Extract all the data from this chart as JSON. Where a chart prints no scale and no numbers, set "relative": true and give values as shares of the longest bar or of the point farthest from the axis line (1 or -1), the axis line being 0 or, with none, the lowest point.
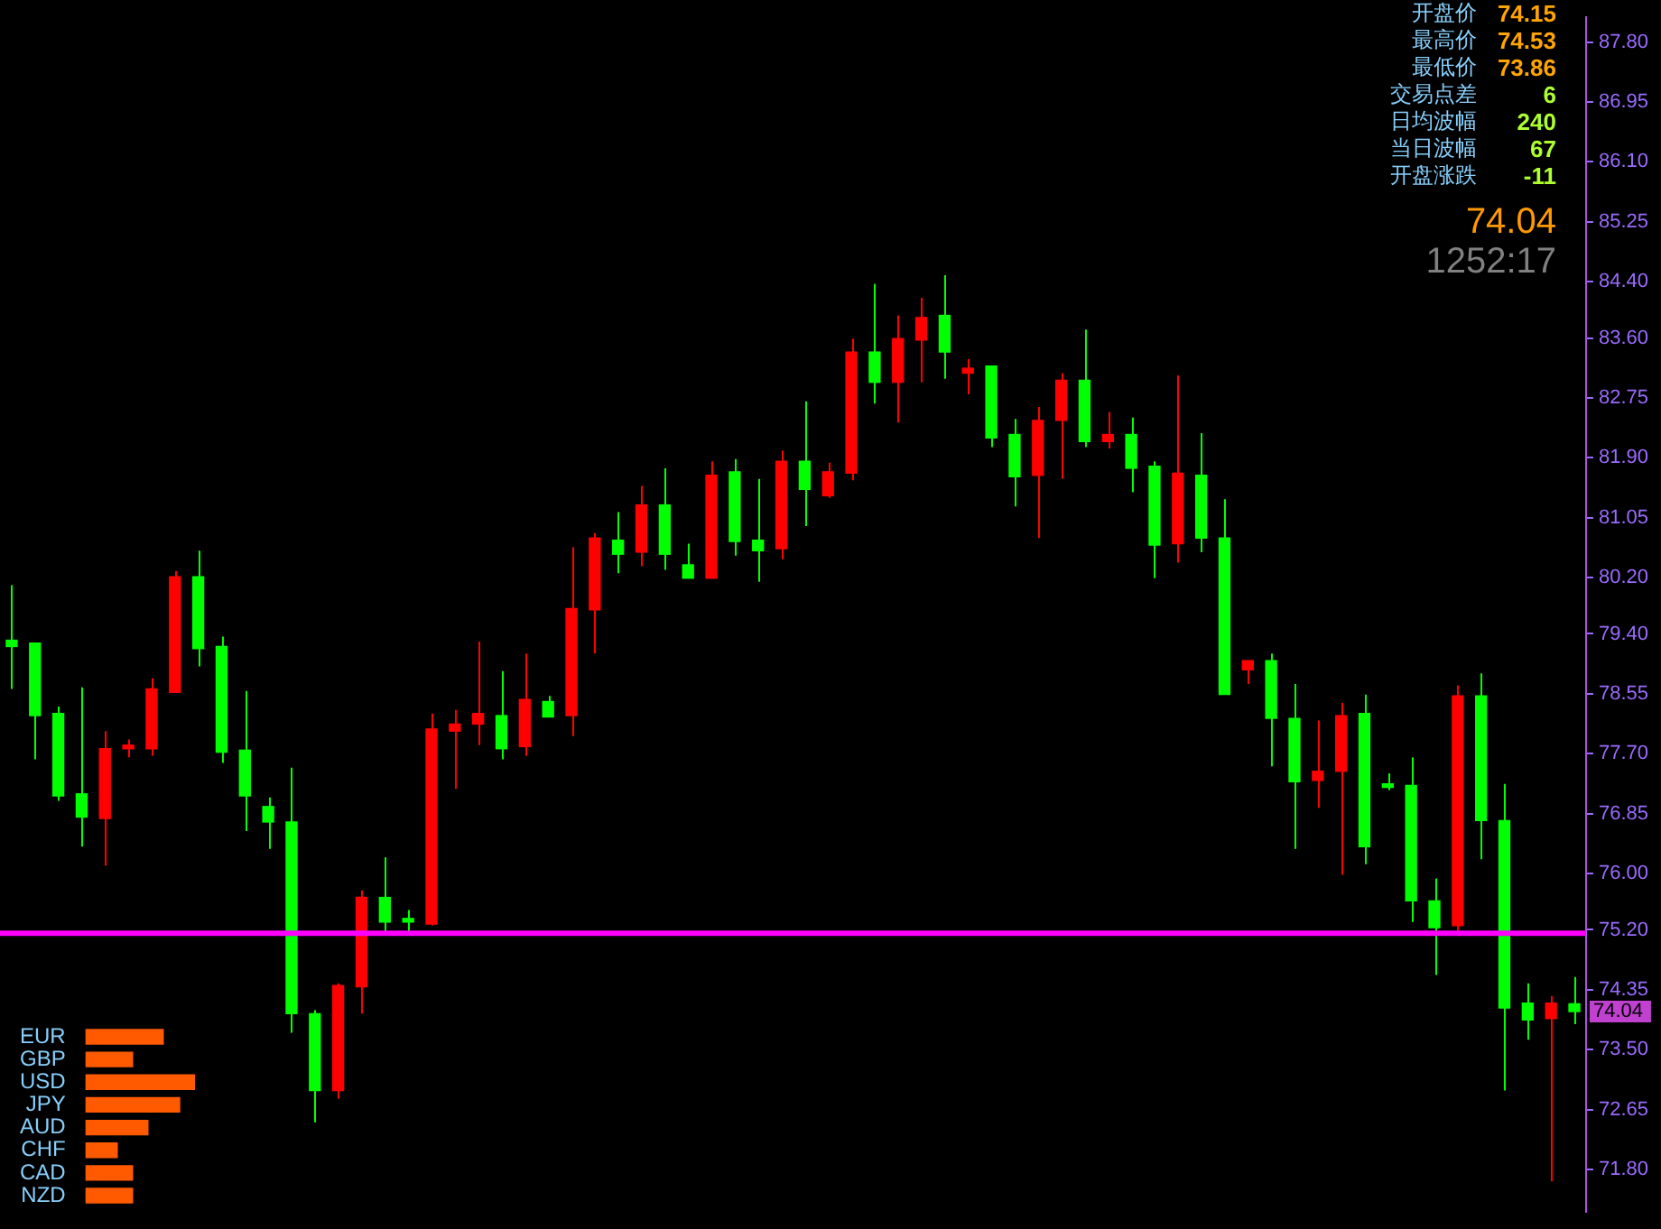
{
  "chart_data": [
    {
      "type": "candlestick",
      "tick_labels": "y",
      "categories": [
        null,
        null,
        null,
        null,
        null,
        null,
        null,
        null,
        null,
        null,
        null,
        null,
        null,
        null,
        null,
        null,
        null,
        null,
        null,
        null,
        null,
        null,
        null,
        null,
        null,
        null,
        null,
        null,
        null,
        null,
        null,
        null,
        null,
        null,
        null,
        null,
        null,
        null,
        null,
        null,
        null,
        null,
        null,
        null,
        null,
        null,
        null,
        null,
        null,
        null,
        null,
        null,
        null,
        null,
        null,
        null,
        null,
        null,
        null,
        null,
        null,
        null,
        null,
        null,
        null,
        null,
        null,
        null
      ],
      "ohlc": [
        [
          79.31,
          80.09,
          78.62,
          79.22
        ],
        [
          79.27,
          79.27,
          77.62,
          78.24
        ],
        [
          78.27,
          78.37,
          77.03,
          77.1
        ],
        [
          77.13,
          78.64,
          76.38,
          76.8
        ],
        [
          76.78,
          78.02,
          76.11,
          77.77
        ],
        [
          77.77,
          77.9,
          77.65,
          77.8
        ],
        [
          77.77,
          78.77,
          77.67,
          78.62
        ],
        [
          78.57,
          80.29,
          78.57,
          80.21
        ],
        [
          80.21,
          80.58,
          78.94,
          79.19
        ],
        [
          79.22,
          79.36,
          77.57,
          77.72
        ],
        [
          77.75,
          78.59,
          76.6,
          77.1
        ],
        [
          76.95,
          77.08,
          76.35,
          76.73
        ],
        [
          76.73,
          77.5,
          73.74,
          74.01
        ],
        [
          74.01,
          74.06,
          72.47,
          72.92
        ],
        [
          72.92,
          74.44,
          72.8,
          74.41
        ],
        [
          74.39,
          75.76,
          74.01,
          75.66
        ],
        [
          75.66,
          76.23,
          75.16,
          75.31
        ],
        [
          75.33,
          75.48,
          75.18,
          75.31
        ],
        [
          75.28,
          78.27,
          75.26,
          78.05
        ],
        [
          78.02,
          78.32,
          77.2,
          78.12
        ],
        [
          78.12,
          79.29,
          77.82,
          78.27
        ],
        [
          78.24,
          78.87,
          77.62,
          77.77
        ],
        [
          77.8,
          79.12,
          77.67,
          78.47
        ],
        [
          78.44,
          78.52,
          78.22,
          78.22
        ],
        [
          78.24,
          80.63,
          77.95,
          79.76
        ],
        [
          79.74,
          80.83,
          79.12,
          80.76
        ],
        [
          80.73,
          81.13,
          80.26,
          80.53
        ],
        [
          80.56,
          81.5,
          80.36,
          81.23
        ],
        [
          81.23,
          81.75,
          80.31,
          80.53
        ],
        [
          80.38,
          80.68,
          80.19,
          80.19
        ],
        [
          80.19,
          81.85,
          80.19,
          81.65
        ],
        [
          81.7,
          81.88,
          80.51,
          80.71
        ],
        [
          80.73,
          81.6,
          80.14,
          80.58
        ],
        [
          80.61,
          82.0,
          80.46,
          81.85
        ],
        [
          81.85,
          82.7,
          80.93,
          81.45
        ],
        [
          81.36,
          81.83,
          81.33,
          81.7
        ],
        [
          81.68,
          83.59,
          81.58,
          83.4
        ],
        [
          83.4,
          84.37,
          82.67,
          82.97
        ],
        [
          82.97,
          83.92,
          82.4,
          83.59
        ],
        [
          83.57,
          84.17,
          82.97,
          83.89
        ],
        [
          83.92,
          84.49,
          83.02,
          83.4
        ],
        [
          83.1,
          83.3,
          82.8,
          83.17
        ],
        [
          83.2,
          83.2,
          82.05,
          82.18
        ],
        [
          82.23,
          82.45,
          81.21,
          81.63
        ],
        [
          81.65,
          82.62,
          80.76,
          82.43
        ],
        [
          82.43,
          83.1,
          81.6,
          83.0
        ],
        [
          83.0,
          83.72,
          82.05,
          82.13
        ],
        [
          82.13,
          82.55,
          82.03,
          82.23
        ],
        [
          82.23,
          82.47,
          81.41,
          81.75
        ],
        [
          81.78,
          81.85,
          80.19,
          80.66
        ],
        [
          80.68,
          83.07,
          80.41,
          81.68
        ],
        [
          81.65,
          82.25,
          80.56,
          80.76
        ],
        [
          80.76,
          81.31,
          78.54,
          78.54
        ],
        [
          78.89,
          79.02,
          78.69,
          79.02
        ],
        [
          79.02,
          79.12,
          77.52,
          78.2
        ],
        [
          78.2,
          78.69,
          76.35,
          77.3
        ],
        [
          77.32,
          78.17,
          76.93,
          77.45
        ],
        [
          77.45,
          78.42,
          75.98,
          78.24
        ],
        [
          78.27,
          78.54,
          76.13,
          76.38
        ],
        [
          77.25,
          77.42,
          77.18,
          77.22
        ],
        [
          77.25,
          77.65,
          75.31,
          75.61
        ],
        [
          75.61,
          75.93,
          74.56,
          75.23
        ],
        [
          75.26,
          78.67,
          75.13,
          78.52
        ],
        [
          78.52,
          78.84,
          76.2,
          76.75
        ],
        [
          76.75,
          77.27,
          72.92,
          74.09
        ],
        [
          74.16,
          74.44,
          73.64,
          73.92
        ],
        [
          73.94,
          74.26,
          71.63,
          74.16
        ],
        [
          74.15,
          74.53,
          73.86,
          74.04
        ]
      ],
      "colors": [
        "#00ff00",
        "#00ff00",
        "#00ff00",
        "#00ff00",
        "#ff0000",
        "#ff0000",
        "#ff0000",
        "#ff0000",
        "#00ff00",
        "#00ff00",
        "#00ff00",
        "#00ff00",
        "#00ff00",
        "#00ff00",
        "#ff0000",
        "#ff0000",
        "#00ff00",
        "#00ff00",
        "#ff0000",
        "#ff0000",
        "#ff0000",
        "#00ff00",
        "#ff0000",
        "#00ff00",
        "#ff0000",
        "#ff0000",
        "#00ff00",
        "#ff0000",
        "#00ff00",
        "#00ff00",
        "#ff0000",
        "#00ff00",
        "#00ff00",
        "#ff0000",
        "#00ff00",
        "#ff0000",
        "#ff0000",
        "#00ff00",
        "#ff0000",
        "#ff0000",
        "#00ff00",
        "#ff0000",
        "#00ff00",
        "#00ff00",
        "#ff0000",
        "#ff0000",
        "#00ff00",
        "#ff0000",
        "#00ff00",
        "#00ff00",
        "#ff0000",
        "#00ff00",
        "#00ff00",
        "#ff0000",
        "#00ff00",
        "#00ff00",
        "#ff0000",
        "#ff0000",
        "#00ff00",
        "#00ff00",
        "#00ff00",
        "#00ff00",
        "#ff0000",
        "#00ff00",
        "#00ff00",
        "#00ff00",
        "#ff0000",
        "#00ff00"
      ],
      "ylim": [
        71.2,
        88.15
      ],
      "yticks": [
        {
          "value": 87.8,
          "label": "87.80"
        },
        {
          "value": 86.95,
          "label": "86.95"
        },
        {
          "value": 86.1,
          "label": "86.10"
        },
        {
          "value": 85.25,
          "label": "85.25"
        },
        {
          "value": 84.4,
          "label": "84.40"
        },
        {
          "value": 83.6,
          "label": "83.60"
        },
        {
          "value": 82.75,
          "label": "82.75"
        },
        {
          "value": 81.9,
          "label": "81.90"
        },
        {
          "value": 81.05,
          "label": "81.05"
        },
        {
          "value": 80.2,
          "label": "80.20"
        },
        {
          "value": 79.4,
          "label": "79.40"
        },
        {
          "value": 78.55,
          "label": "78.55"
        },
        {
          "value": 77.7,
          "label": "77.70"
        },
        {
          "value": 76.85,
          "label": "76.85"
        },
        {
          "value": 76,
          "label": "76.00"
        },
        {
          "value": 75.2,
          "label": "75.20"
        },
        {
          "value": 74.35,
          "label": "74.35"
        },
        {
          "value": 73.5,
          "label": "73.50"
        },
        {
          "value": 72.65,
          "label": "72.65"
        },
        {
          "value": 71.8,
          "label": "71.80"
        }
      ],
      "ref_lines": [
        {
          "axis": "y",
          "value": 75.15,
          "color": "#ff00ff"
        }
      ],
      "annotations": [
        "开盘价",
        "74.15",
        "最高价",
        "74.53",
        "最低价",
        "73.86",
        "交易点差",
        "6",
        "日均波幅",
        "240",
        "当日波幅",
        "67",
        "开盘涨跌",
        "-11",
        "74.04",
        "1252:17",
        {
          "text": "74.04",
          "y": 74.04
        }
      ]
    },
    {
      "type": "bar",
      "orientation": "horizontal",
      "relative": true,
      "color": "#ff5a00",
      "categories": [
        "EUR",
        "GBP",
        "USD",
        "JPY",
        "AUD",
        "CHF",
        "CAD",
        "NZD"
      ],
      "values": [
        0.71,
        0.43,
        1,
        0.86,
        0.57,
        0.29,
        0.43,
        0.43
      ]
    }
  ]
}
